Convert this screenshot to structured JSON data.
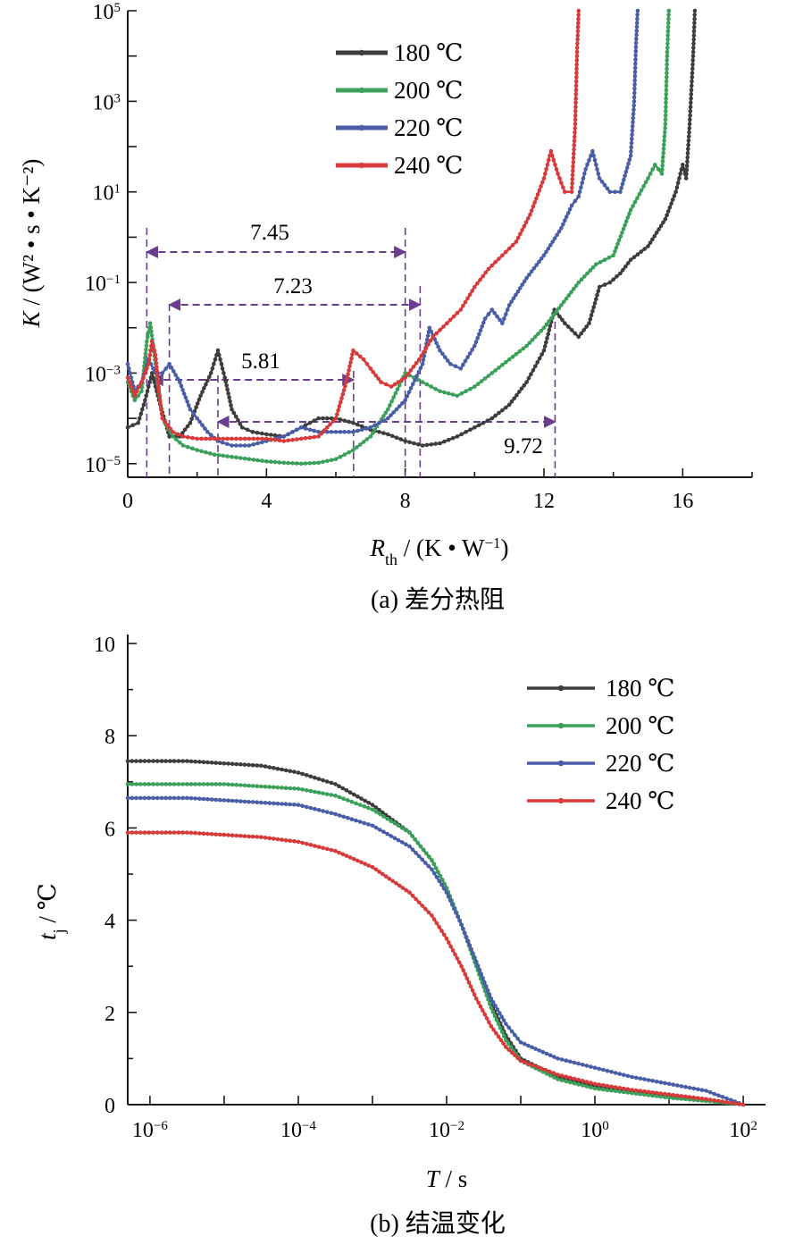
{
  "chart_data": [
    {
      "type": "line",
      "id": "a",
      "caption": "(a) 差分热阻",
      "xlabel_main": "R",
      "xlabel_sub": "th",
      "xlabel_rest": " / (K • W",
      "xlabel_sup": "−1",
      "xlabel_end": ")",
      "ylabel_main": "K",
      "ylabel_text": " / (W² • s • K⁻²)",
      "xlim": [
        0,
        18
      ],
      "ylim_log10": [
        -5.3,
        5
      ],
      "xticks": [
        0,
        4,
        8,
        12,
        16
      ],
      "yticks": [
        {
          "exp": -5,
          "text": "10",
          "sup": "−5"
        },
        {
          "exp": -3,
          "text": "10",
          "sup": "−3"
        },
        {
          "exp": -1,
          "text": "10",
          "sup": "−1"
        },
        {
          "exp": 1,
          "text": "10",
          "sup": "1"
        },
        {
          "exp": 3,
          "text": "10",
          "sup": "3"
        },
        {
          "exp": 5,
          "text": "10",
          "sup": "5"
        }
      ],
      "legend": [
        "180 ℃",
        "200 ℃",
        "220 ℃",
        "240 ℃"
      ],
      "annotations": [
        {
          "label": "7.45",
          "x_start": 0.55,
          "x_end": 8.0,
          "y_log10": -0.2
        },
        {
          "label": "7.23",
          "x_start": 1.2,
          "x_end": 8.43,
          "y_log10": -1.3
        },
        {
          "label": "5.81",
          "x_start": 0.7,
          "x_end": 6.51,
          "y_log10": -2.9
        },
        {
          "label": "9.72",
          "x_start": 2.6,
          "x_end": 12.32,
          "y_log10": -3.9
        }
      ],
      "series": [
        {
          "name": "180 ℃",
          "color": "#3d3d3d",
          "x": [
            0,
            0.3,
            0.5,
            0.7,
            0.9,
            1.2,
            1.5,
            1.8,
            2.1,
            2.4,
            2.6,
            2.8,
            3.0,
            3.3,
            3.6,
            4.0,
            4.5,
            5.0,
            5.5,
            6.0,
            6.5,
            7.0,
            7.5,
            8.0,
            8.5,
            9.0,
            9.5,
            10.0,
            10.5,
            11.0,
            11.5,
            12.0,
            12.3,
            12.6,
            13.0,
            13.3,
            13.6,
            13.9,
            14.2,
            14.5,
            15.0,
            15.5,
            15.8,
            16.0,
            16.1,
            16.2,
            16.3,
            16.35
          ],
          "y": [
            -4.2,
            -4.1,
            -3.6,
            -3.0,
            -3.6,
            -4.4,
            -4.4,
            -4.1,
            -3.5,
            -3.0,
            -2.5,
            -3.1,
            -3.8,
            -4.2,
            -4.3,
            -4.35,
            -4.4,
            -4.2,
            -4.0,
            -4.0,
            -4.1,
            -4.25,
            -4.35,
            -4.5,
            -4.6,
            -4.55,
            -4.4,
            -4.2,
            -4.0,
            -3.7,
            -3.2,
            -2.5,
            -1.6,
            -1.9,
            -2.2,
            -1.9,
            -1.1,
            -1.0,
            -0.8,
            -0.5,
            -0.2,
            0.4,
            1.0,
            1.6,
            1.3,
            2.5,
            4.0,
            5.0
          ]
        },
        {
          "name": "200 ℃",
          "color": "#3aa05a",
          "x": [
            0,
            0.2,
            0.4,
            0.55,
            0.65,
            0.8,
            1.0,
            1.3,
            1.6,
            2.0,
            2.5,
            3.0,
            3.5,
            4.0,
            4.5,
            5.0,
            5.5,
            6.0,
            6.5,
            7.0,
            7.5,
            8.0,
            8.5,
            9.0,
            9.5,
            10.0,
            10.5,
            11.0,
            11.5,
            12.0,
            12.5,
            13.0,
            13.5,
            14.0,
            14.5,
            15.0,
            15.2,
            15.4,
            15.5,
            15.55,
            15.6
          ],
          "y": [
            -3.2,
            -3.6,
            -3.4,
            -2.3,
            -1.9,
            -2.8,
            -4.0,
            -4.4,
            -4.6,
            -4.7,
            -4.8,
            -4.85,
            -4.9,
            -4.95,
            -4.98,
            -5.0,
            -4.98,
            -4.9,
            -4.7,
            -4.4,
            -3.8,
            -3.0,
            -3.2,
            -3.4,
            -3.5,
            -3.3,
            -3.0,
            -2.7,
            -2.4,
            -2.0,
            -1.5,
            -1.0,
            -0.6,
            -0.4,
            0.6,
            1.3,
            1.6,
            1.4,
            2.5,
            4.0,
            5.0
          ]
        },
        {
          "name": "220 ℃",
          "color": "#4a5ea8",
          "x": [
            0,
            0.2,
            0.4,
            0.6,
            0.8,
            1.0,
            1.2,
            1.5,
            1.8,
            2.0,
            2.3,
            2.6,
            3.0,
            3.5,
            4.0,
            4.5,
            5.0,
            5.5,
            6.0,
            6.5,
            7.0,
            7.5,
            8.0,
            8.5,
            8.7,
            9.0,
            9.3,
            9.6,
            10.0,
            10.3,
            10.5,
            10.8,
            11.0,
            11.5,
            12.0,
            12.5,
            12.8,
            13.0,
            13.2,
            13.4,
            13.6,
            13.9,
            14.2,
            14.5,
            14.6,
            14.65,
            14.7
          ],
          "y": [
            -2.8,
            -3.4,
            -3.2,
            -2.7,
            -3.0,
            -3.0,
            -2.8,
            -3.2,
            -3.8,
            -4.0,
            -4.3,
            -4.5,
            -4.6,
            -4.6,
            -4.5,
            -4.4,
            -4.2,
            -4.3,
            -4.3,
            -4.3,
            -4.2,
            -4.0,
            -3.6,
            -2.8,
            -2.0,
            -2.5,
            -2.8,
            -2.9,
            -2.4,
            -1.8,
            -1.6,
            -1.9,
            -1.5,
            -0.9,
            -0.4,
            0.2,
            0.7,
            0.9,
            1.5,
            1.9,
            1.3,
            1.0,
            1.0,
            1.8,
            3.0,
            4.2,
            5.0
          ]
        },
        {
          "name": "240 ℃",
          "color": "#d83a3a",
          "x": [
            0,
            0.2,
            0.4,
            0.6,
            0.7,
            0.8,
            0.9,
            1.0,
            1.3,
            1.6,
            2.0,
            2.5,
            3.0,
            3.5,
            4.0,
            4.5,
            5.0,
            5.5,
            6.0,
            6.3,
            6.5,
            6.8,
            7.0,
            7.3,
            7.6,
            8.0,
            8.4,
            8.8,
            9.2,
            9.6,
            10.0,
            10.4,
            10.8,
            11.2,
            11.6,
            12.0,
            12.2,
            12.4,
            12.6,
            12.8,
            12.9,
            12.95,
            13.0
          ],
          "y": [
            -3.1,
            -3.5,
            -3.2,
            -2.8,
            -2.3,
            -2.6,
            -3.4,
            -4.0,
            -4.3,
            -4.4,
            -4.45,
            -4.45,
            -4.45,
            -4.45,
            -4.45,
            -4.5,
            -4.45,
            -4.4,
            -4.0,
            -3.2,
            -2.5,
            -2.7,
            -2.9,
            -3.2,
            -3.3,
            -3.1,
            -2.7,
            -2.2,
            -1.9,
            -1.6,
            -1.1,
            -0.7,
            -0.4,
            -0.1,
            0.5,
            1.3,
            1.9,
            1.4,
            1.0,
            1.0,
            2.5,
            4.0,
            5.0
          ]
        }
      ]
    },
    {
      "type": "line",
      "id": "b",
      "caption": "(b) 结温变化",
      "xlabel_main": "T",
      "xlabel_rest": " / s",
      "ylabel_main": "t",
      "ylabel_sub": "j",
      "ylabel_rest": " / ℃",
      "xlim_log10": [
        -6.3,
        2.3
      ],
      "ylim": [
        0,
        10
      ],
      "xticks": [
        {
          "exp": -6,
          "text": "10",
          "sup": "−6"
        },
        {
          "exp": -4,
          "text": "10",
          "sup": "−4"
        },
        {
          "exp": -2,
          "text": "10",
          "sup": "−2"
        },
        {
          "exp": 0,
          "text": "10",
          "sup": "0"
        },
        {
          "exp": 2,
          "text": "10",
          "sup": "2"
        }
      ],
      "yticks": [
        0,
        2,
        4,
        6,
        8,
        10
      ],
      "legend": [
        "180 ℃",
        "200 ℃",
        "220 ℃",
        "240 ℃"
      ],
      "series": [
        {
          "name": "180 ℃",
          "color": "#3d3d3d",
          "logx": [
            -6.3,
            -5.5,
            -5,
            -4.5,
            -4,
            -3.5,
            -3,
            -2.5,
            -2.2,
            -2,
            -1.8,
            -1.6,
            -1.4,
            -1.2,
            -1,
            -0.5,
            0,
            0.5,
            1,
            1.5,
            2
          ],
          "y": [
            7.45,
            7.45,
            7.4,
            7.35,
            7.2,
            6.95,
            6.5,
            5.9,
            5.3,
            4.7,
            3.9,
            3.1,
            2.2,
            1.5,
            1.0,
            0.6,
            0.4,
            0.28,
            0.18,
            0.1,
            0.0
          ]
        },
        {
          "name": "200 ℃",
          "color": "#3aa05a",
          "logx": [
            -6.3,
            -5.5,
            -5,
            -4.5,
            -4,
            -3.5,
            -3,
            -2.5,
            -2.2,
            -2,
            -1.8,
            -1.6,
            -1.4,
            -1.2,
            -1,
            -0.5,
            0,
            0.5,
            1,
            1.5,
            2
          ],
          "y": [
            6.95,
            6.95,
            6.95,
            6.9,
            6.85,
            6.7,
            6.4,
            5.9,
            5.3,
            4.7,
            3.9,
            3.0,
            2.1,
            1.4,
            0.95,
            0.55,
            0.35,
            0.25,
            0.15,
            0.08,
            0.0
          ]
        },
        {
          "name": "220 ℃",
          "color": "#4a5ea8",
          "logx": [
            -6.3,
            -5.5,
            -5,
            -4.5,
            -4,
            -3.5,
            -3,
            -2.5,
            -2.2,
            -2,
            -1.8,
            -1.6,
            -1.4,
            -1.2,
            -1,
            -0.5,
            0,
            0.5,
            1,
            1.5,
            2
          ],
          "y": [
            6.65,
            6.65,
            6.6,
            6.55,
            6.5,
            6.3,
            6.05,
            5.6,
            5.1,
            4.6,
            3.9,
            3.1,
            2.3,
            1.75,
            1.35,
            1.0,
            0.8,
            0.6,
            0.45,
            0.3,
            0.0
          ]
        },
        {
          "name": "240 ℃",
          "color": "#d83a3a",
          "logx": [
            -6.3,
            -5.5,
            -5,
            -4.5,
            -4,
            -3.5,
            -3,
            -2.5,
            -2.2,
            -2,
            -1.8,
            -1.6,
            -1.4,
            -1.2,
            -1,
            -0.5,
            0,
            0.5,
            1,
            1.5,
            2
          ],
          "y": [
            5.9,
            5.9,
            5.85,
            5.8,
            5.7,
            5.5,
            5.15,
            4.6,
            4.1,
            3.6,
            3.0,
            2.3,
            1.7,
            1.25,
            0.95,
            0.65,
            0.45,
            0.32,
            0.22,
            0.12,
            0.0
          ]
        }
      ]
    }
  ]
}
